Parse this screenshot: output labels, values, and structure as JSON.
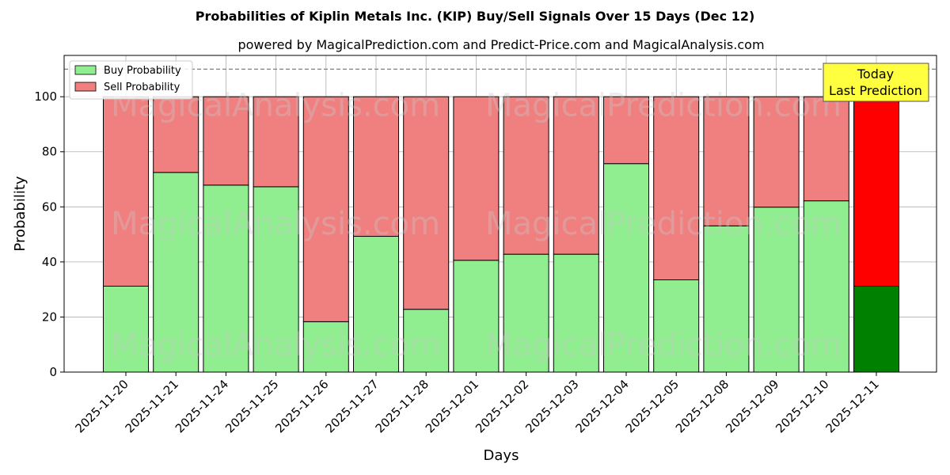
{
  "chart_data": {
    "type": "bar",
    "stacked": true,
    "title": "Probabilities of Kiplin Metals Inc. (KIP) Buy/Sell Signals Over 15 Days (Dec 12)",
    "subtitle": "powered by MagicalPrediction.com and Predict-Price.com and MagicalAnalysis.com",
    "xlabel": "Days",
    "ylabel": "Probability",
    "ylim": [
      0,
      115
    ],
    "yticks": [
      0,
      20,
      40,
      60,
      80,
      100
    ],
    "grid": true,
    "threshold_line": 110,
    "legend_position": "top-left",
    "categories": [
      "2025-11-20",
      "2025-11-21",
      "2025-11-24",
      "2025-11-25",
      "2025-11-26",
      "2025-11-27",
      "2025-11-28",
      "2025-12-01",
      "2025-12-02",
      "2025-12-03",
      "2025-12-04",
      "2025-12-05",
      "2025-12-08",
      "2025-12-09",
      "2025-12-10",
      "2025-12-11"
    ],
    "series": [
      {
        "name": "Buy Probability",
        "values": [
          31.2,
          72.5,
          67.9,
          67.3,
          18.3,
          49.3,
          22.8,
          40.6,
          42.8,
          42.8,
          75.7,
          33.5,
          53.1,
          59.9,
          62.2,
          31.2
        ]
      },
      {
        "name": "Sell Probability",
        "values": [
          68.8,
          27.5,
          32.1,
          32.7,
          81.7,
          50.7,
          77.2,
          59.4,
          57.2,
          57.2,
          24.3,
          66.5,
          46.9,
          40.1,
          37.8,
          68.8
        ]
      }
    ],
    "colors": {
      "buy": "#90ee90",
      "sell": "#f08080",
      "today_buy": "#008000",
      "today_sell": "#ff0000",
      "today_box": "#ffff40"
    },
    "annotation": {
      "line1": "Today",
      "line2": "Last Prediction"
    },
    "watermarks": [
      "MagicalAnalysis.com",
      "MagicalPrediction.com"
    ]
  }
}
